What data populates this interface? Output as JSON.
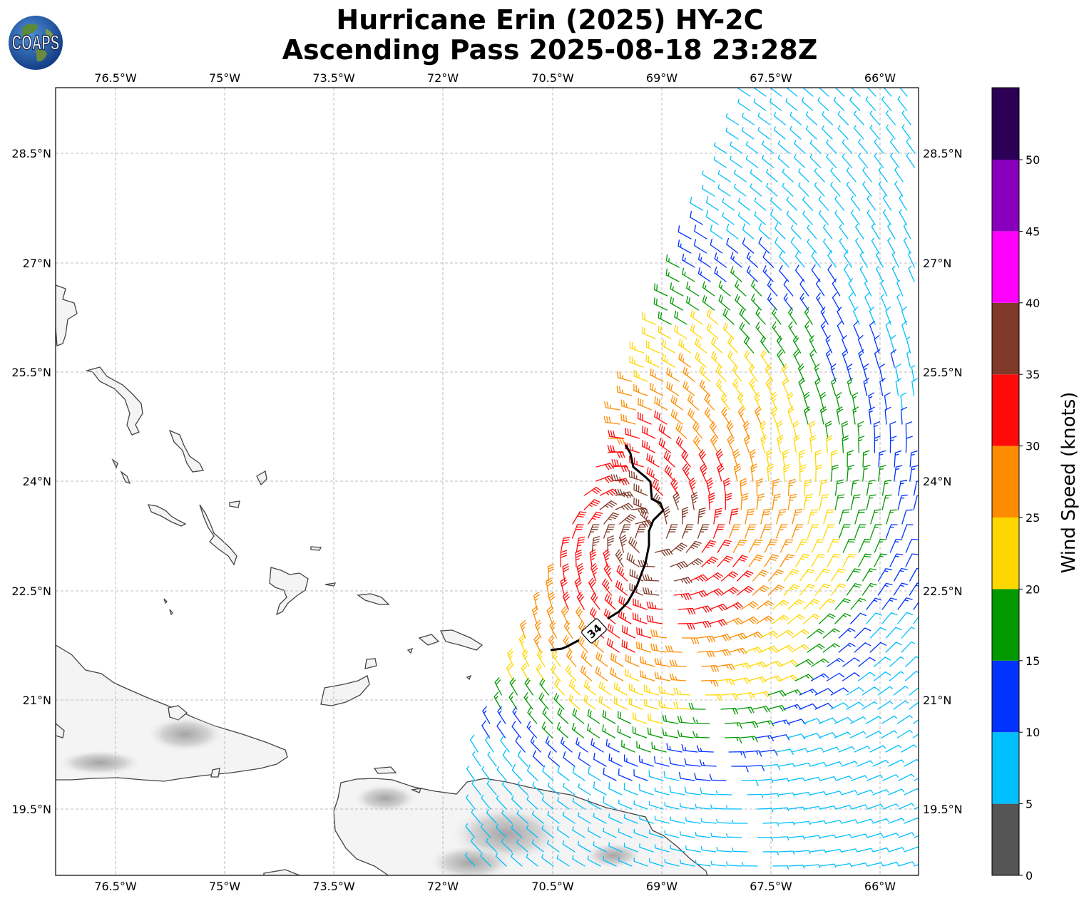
{
  "title": {
    "line1": "Hurricane Erin (2025) HY-2C",
    "line2": "Ascending Pass 2025-08-18 23:28Z"
  },
  "logo": {
    "text": "COAPS",
    "icon": "globe-icon"
  },
  "map": {
    "lon_ticks": [
      "76.5°W",
      "75°W",
      "73.5°W",
      "72°W",
      "70.5°W",
      "69°W",
      "67.5°W",
      "66°W"
    ],
    "lat_ticks": [
      "28.5°N",
      "27°N",
      "25.5°N",
      "24°N",
      "22.5°N",
      "21°N",
      "19.5°N"
    ],
    "lon_range": [
      -77.3,
      -65.45
    ],
    "lat_range": [
      18.58,
      29.4
    ],
    "contour_label": "34",
    "land_color": "#f4f4f4",
    "coast_color": "#444444"
  },
  "colorbar": {
    "label": "Wind Speed (knots)",
    "ticks": [
      "0",
      "5",
      "10",
      "15",
      "20",
      "25",
      "30",
      "35",
      "40",
      "45",
      "50"
    ],
    "colors": [
      "#555555",
      "#00bfff",
      "#0033ff",
      "#009900",
      "#ffd700",
      "#ff8c00",
      "#ff0a0a",
      "#7f3a2a",
      "#ff00ff",
      "#8800bb",
      "#2c0055"
    ]
  }
}
